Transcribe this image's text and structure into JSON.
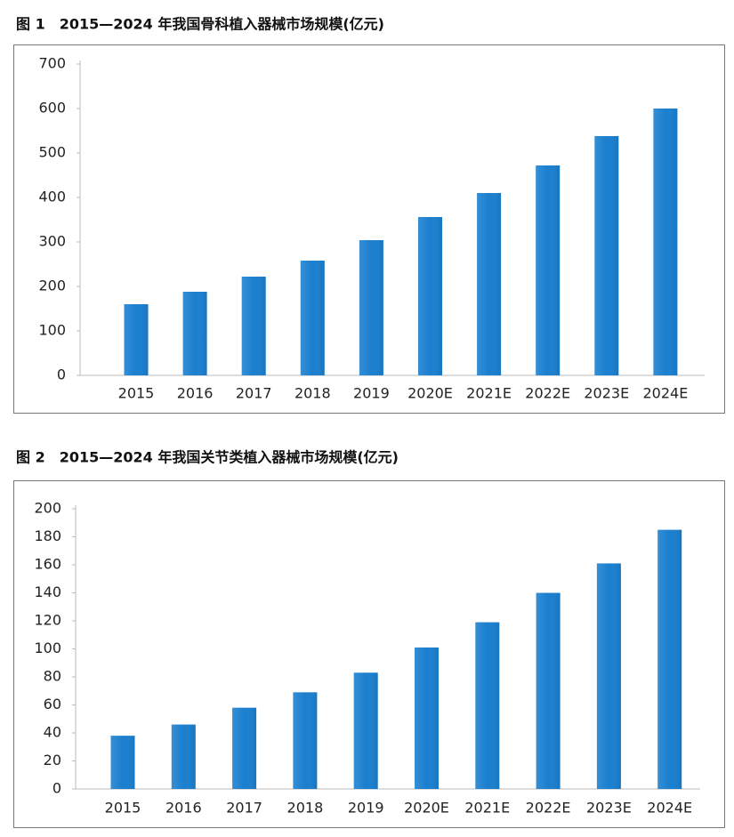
{
  "chart_data": [
    {
      "type": "bar",
      "title": "图 1　2015—2024 年我国骨科植入器械市场规模(亿元)",
      "categories": [
        "2015",
        "2016",
        "2017",
        "2018",
        "2019",
        "2020E",
        "2021E",
        "2022E",
        "2023E",
        "2024E"
      ],
      "values": [
        160,
        188,
        222,
        258,
        304,
        356,
        410,
        472,
        538,
        600
      ],
      "color": "#1a7fcf",
      "ylim": [
        0,
        700
      ],
      "yticks": [
        0,
        100,
        200,
        300,
        400,
        500,
        600,
        700
      ],
      "grid": false
    },
    {
      "type": "bar",
      "title": "图 2　2015—2024 年我国关节类植入器械市场规模(亿元)",
      "categories": [
        "2015",
        "2016",
        "2017",
        "2018",
        "2019",
        "2020E",
        "2021E",
        "2022E",
        "2023E",
        "2024E"
      ],
      "values": [
        38,
        46,
        58,
        69,
        83,
        101,
        119,
        140,
        161,
        185
      ],
      "color": "#1a7fcf",
      "ylim": [
        0,
        200
      ],
      "yticks": [
        0,
        20,
        40,
        60,
        80,
        100,
        120,
        140,
        160,
        180,
        200
      ],
      "grid": false
    }
  ]
}
